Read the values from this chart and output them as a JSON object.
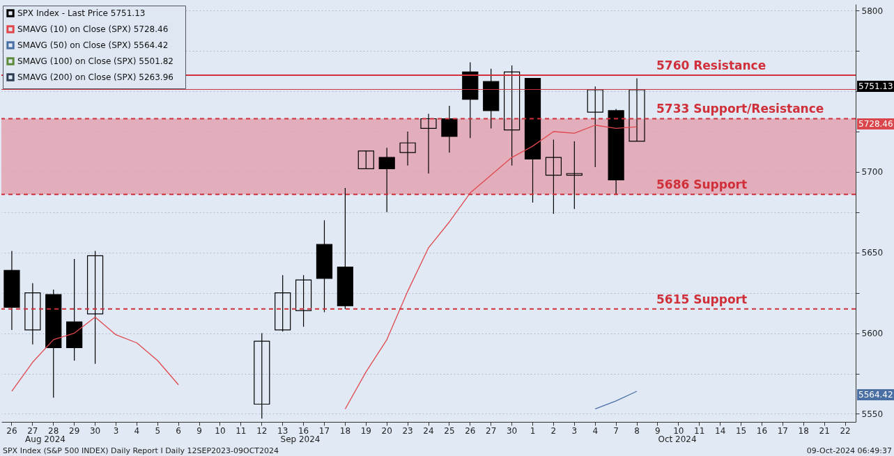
{
  "chart_data": {
    "type": "candlestick",
    "categories": [
      "26",
      "27",
      "28",
      "29",
      "30",
      "3",
      "4",
      "5",
      "6",
      "9",
      "10",
      "11",
      "12",
      "13",
      "16",
      "17",
      "18",
      "19",
      "20",
      "23",
      "24",
      "25",
      "26",
      "27",
      "30",
      "1",
      "2",
      "3",
      "4",
      "7",
      "8",
      "9",
      "10",
      "11",
      "14",
      "15",
      "16",
      "17",
      "18",
      "21",
      "22"
    ],
    "series": [
      {
        "name": "SPX Index - Last Price   5751.13",
        "color": "#000000",
        "ohlc": [
          [
            5639,
            5651,
            5602,
            5616
          ],
          [
            5602,
            5631,
            5593,
            5625
          ],
          [
            5624,
            5627,
            5560,
            5591
          ],
          [
            5607,
            5646,
            5583,
            5591
          ],
          [
            5612,
            5651,
            5581,
            5648
          ],
          null,
          null,
          null,
          null,
          null,
          null,
          null,
          [
            5556,
            5600,
            5547,
            5595
          ],
          [
            5602,
            5636,
            5601,
            5625
          ],
          [
            5614,
            5636,
            5604,
            5633
          ],
          [
            5655,
            5670,
            5613,
            5634
          ],
          [
            5641,
            5690,
            5615,
            5617
          ],
          [
            5702,
            5713,
            5702,
            5713
          ],
          [
            5709,
            5715,
            5675,
            5702
          ],
          [
            5712,
            5725,
            5704,
            5718
          ],
          [
            5727,
            5736,
            5699,
            5733
          ],
          [
            5733,
            5741,
            5712,
            5722
          ],
          [
            5762,
            5768,
            5721,
            5745
          ],
          [
            5756,
            5764,
            5727,
            5738
          ],
          [
            5726,
            5766,
            5704,
            5762
          ],
          [
            5758,
            5758,
            5681,
            5708
          ],
          [
            5698,
            5720,
            5674,
            5709
          ],
          [
            5698,
            5719,
            5677,
            5699
          ],
          [
            5737,
            5753,
            5703,
            5751
          ],
          [
            5738,
            5739,
            5686,
            5695
          ],
          [
            5719,
            5758,
            5719,
            5751
          ],
          null,
          null,
          null,
          null,
          null,
          null,
          null,
          null,
          null,
          null
        ]
      },
      {
        "type": "line",
        "name": "SMAVG (10)  on Close (SPX)   5728.46",
        "color": "#e0474c",
        "values": [
          5564,
          5582,
          5596,
          5600,
          5610,
          5599,
          5594,
          5583,
          5568,
          null,
          null,
          null,
          null,
          null,
          null,
          null,
          5553,
          5576,
          5596,
          5626,
          5653,
          5669,
          5687,
          5698,
          5709,
          5716,
          5725,
          5724,
          5729,
          5727,
          5728,
          null,
          null,
          null,
          null,
          null,
          null,
          null,
          null,
          null,
          null
        ]
      },
      {
        "type": "line",
        "name": "SMAVG (50)  on Close (SPX)   5564.42",
        "color": "#4a6fa5",
        "values": [
          null,
          null,
          null,
          null,
          null,
          null,
          null,
          null,
          null,
          null,
          null,
          null,
          null,
          null,
          null,
          null,
          null,
          null,
          null,
          null,
          null,
          null,
          null,
          null,
          null,
          null,
          null,
          null,
          5553,
          5558,
          5564,
          null,
          null,
          null,
          null,
          null,
          null,
          null,
          null,
          null,
          null
        ]
      },
      {
        "type": "line",
        "name": "SMAVG (100)  on Close (SPX)   5501.82",
        "color": "#5d8a3a",
        "values": [
          null,
          null,
          null,
          null,
          null,
          null,
          null,
          null,
          null,
          null,
          null,
          null,
          null,
          null,
          null,
          null,
          null,
          null,
          null,
          null,
          null,
          null,
          null,
          null,
          null,
          null,
          null,
          null,
          null,
          null,
          null,
          null,
          null,
          null,
          null,
          null,
          null,
          null,
          null,
          null,
          null
        ]
      },
      {
        "type": "line",
        "name": "SMAVG (200)  on Close (SPX)   5263.96",
        "color": "#2c3a52",
        "values": [
          null,
          null,
          null,
          null,
          null,
          null,
          null,
          null,
          null,
          null,
          null,
          null,
          null,
          null,
          null,
          null,
          null,
          null,
          null,
          null,
          null,
          null,
          null,
          null,
          null,
          null,
          null,
          null,
          null,
          null,
          null,
          null,
          null,
          null,
          null,
          null,
          null,
          null,
          null,
          null,
          null
        ]
      }
    ],
    "ylim": [
      5545,
      5804
    ],
    "yticks": [
      5550,
      {
        "value": 5575,
        "label": null
      },
      5600,
      {
        "value": 5625,
        "label": null
      },
      5650,
      {
        "value": 5675,
        "label": null
      },
      5700,
      {
        "value": 5725,
        "label": null
      },
      {
        "value": 5750,
        "label": null
      },
      {
        "value": 5775,
        "label": null
      },
      5800
    ],
    "grid": "y",
    "legend": "top left",
    "line_style": "solid",
    "bands": [
      {
        "axis": "y",
        "from": 5686,
        "to": 5733,
        "color": "#e3a3b0"
      }
    ],
    "ref_lines": [
      {
        "axis": "y",
        "value": 5760,
        "label": "5760 Resistance",
        "color": "#d0303a",
        "line_style": "solid"
      },
      {
        "axis": "y",
        "value": 5733,
        "label": "5733 Support/Resistance",
        "color": "#d0303a",
        "line_style": "dashed"
      },
      {
        "axis": "y",
        "value": 5686,
        "label": "5686 Support",
        "color": "#d0303a",
        "line_style": "dashed"
      },
      {
        "axis": "y",
        "value": 5615,
        "label": "5615 Support",
        "color": "#d0303a",
        "line_style": "dashed"
      },
      {
        "axis": "y",
        "value": 5751.13,
        "color": "#d0303a",
        "line_style": "solid"
      }
    ],
    "annotations": [
      "Aug 2024",
      "Sep 2024",
      "Oct 2024",
      "5751.13",
      "5728.46",
      "5564.42",
      "SPX Index (S&P 500 INDEX) Daily Report I  Daily 12SEP2023-09OCT2024",
      "09-Oct-2024 06:49:37"
    ]
  }
}
